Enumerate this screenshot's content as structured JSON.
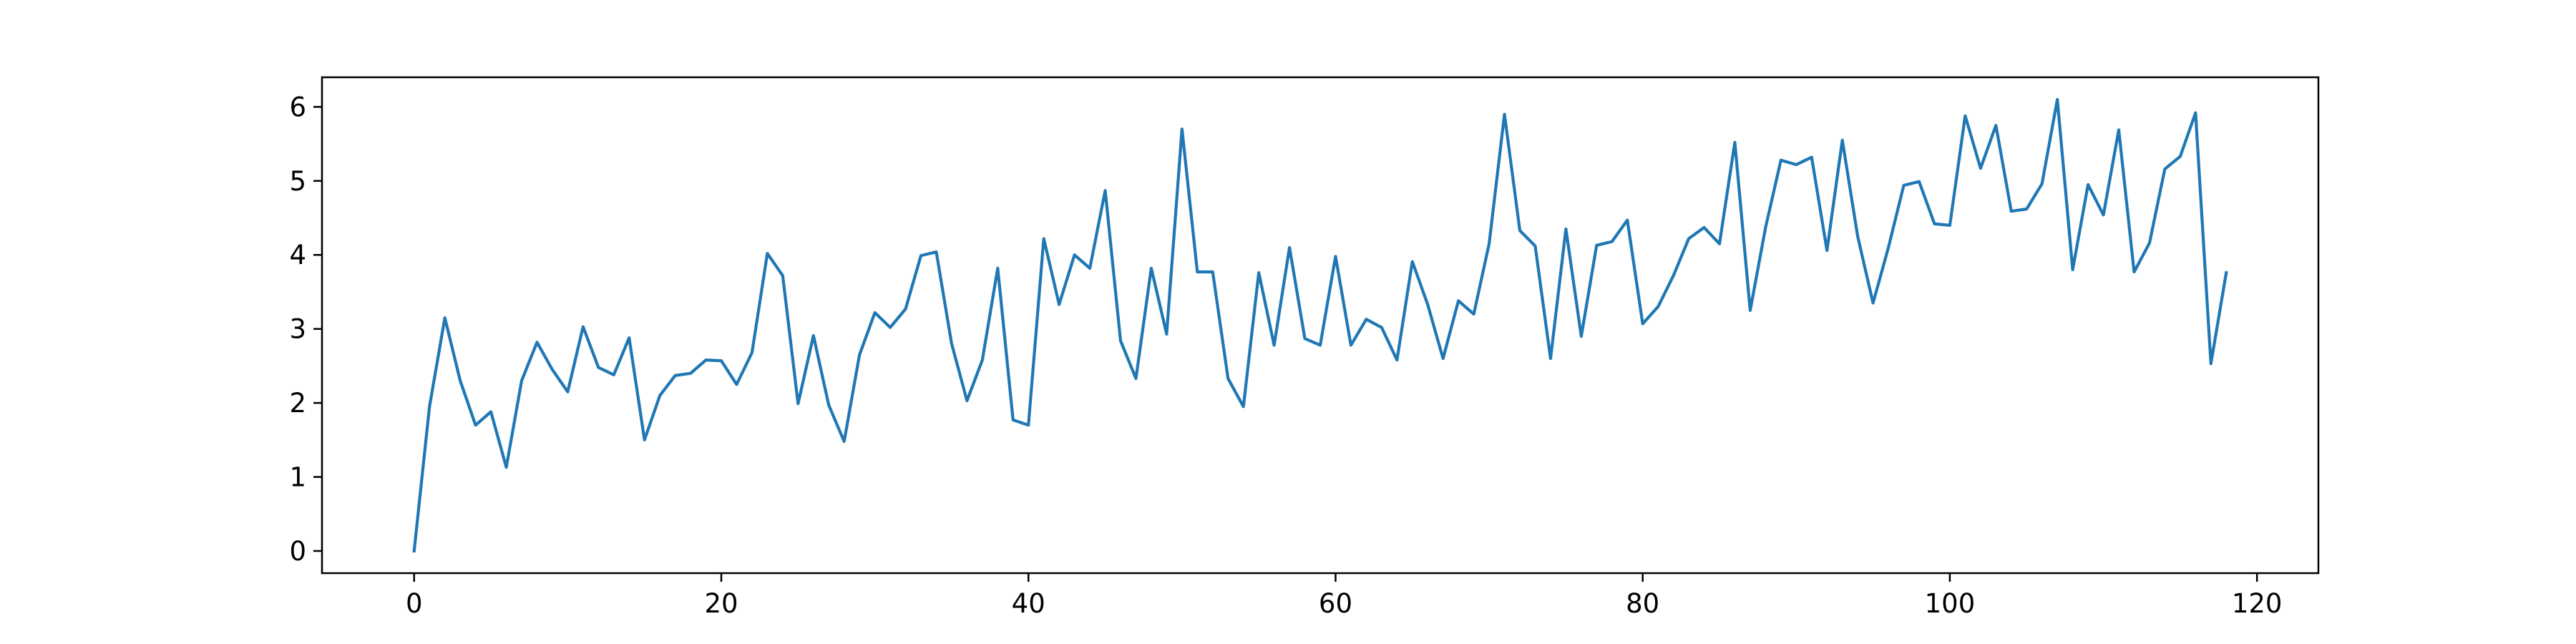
{
  "chart_data": {
    "type": "line",
    "title": "",
    "xlabel": "",
    "ylabel": "",
    "xlim": [
      -6,
      124
    ],
    "ylim": [
      -0.3,
      6.4
    ],
    "x_ticks": [
      0,
      20,
      40,
      60,
      80,
      100,
      120
    ],
    "y_ticks": [
      0,
      1,
      2,
      3,
      4,
      5,
      6
    ],
    "grid": false,
    "colors": {
      "series": "#1f77b4",
      "axes": "#000000",
      "background": "#ffffff"
    },
    "series": [
      {
        "values": [
          0,
          1.95,
          3.15,
          2.3,
          1.7,
          1.88,
          1.13,
          2.3,
          2.82,
          2.45,
          2.15,
          3.03,
          2.48,
          2.38,
          2.88,
          1.5,
          2.1,
          2.37,
          2.4,
          2.58,
          2.57,
          2.25,
          2.68,
          4.02,
          3.72,
          1.99,
          2.91,
          1.97,
          1.48,
          2.65,
          3.22,
          3.02,
          3.27,
          3.99,
          4.04,
          2.8,
          2.03,
          2.58,
          3.82,
          1.77,
          1.7,
          4.22,
          3.33,
          4.0,
          3.82,
          4.87,
          2.84,
          2.33,
          3.82,
          2.93,
          5.7,
          3.77,
          3.77,
          2.33,
          1.95,
          3.76,
          2.78,
          4.1,
          2.87,
          2.78,
          3.98,
          2.78,
          3.13,
          3.02,
          2.58,
          3.91,
          3.33,
          2.6,
          3.38,
          3.2,
          4.15,
          5.9,
          4.33,
          4.12,
          2.6,
          4.35,
          2.9,
          4.13,
          4.18,
          4.47,
          3.07,
          3.3,
          3.72,
          4.22,
          4.37,
          4.15,
          5.52,
          3.25,
          4.37,
          5.28,
          5.22,
          5.32,
          4.06,
          5.55,
          4.25,
          3.35,
          4.1,
          4.94,
          4.99,
          4.42,
          4.4,
          5.88,
          5.17,
          5.75,
          4.59,
          4.62,
          4.96,
          6.1,
          3.8,
          4.95,
          4.54,
          5.69,
          3.77,
          4.16,
          5.16,
          5.33,
          5.92,
          2.53,
          3.76
        ]
      }
    ]
  }
}
